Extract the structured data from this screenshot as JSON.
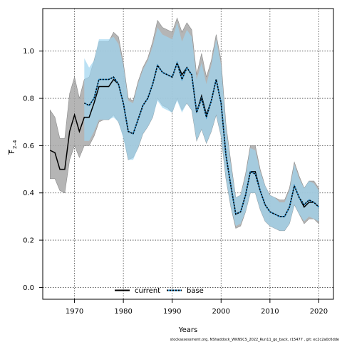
{
  "chart_data": {
    "type": "line",
    "xlabel": "Years",
    "ylabel_main": "F",
    "ylabel_sub": "2–4",
    "xlim": [
      1963.5,
      2023
    ],
    "ylim": [
      -0.05,
      1.18
    ],
    "x_ticks": [
      1970,
      1980,
      1990,
      2000,
      2010,
      2020
    ],
    "y_ticks": [
      0.0,
      0.2,
      0.4,
      0.6,
      0.8,
      1.0
    ],
    "x_tick_labels": [
      "1970",
      "1980",
      "1990",
      "2000",
      "2010",
      "2020"
    ],
    "y_tick_labels": [
      "0.0",
      "0.2",
      "0.4",
      "0.6",
      "0.8",
      "1.0"
    ],
    "grid": true,
    "legend_position": "bottom-center",
    "legend": {
      "current_label": "current",
      "base_label": "base"
    },
    "footer": "stockassessment.org, NShaddock_WKNSCS_2022_Run11_go_back, r15477 , git: ec2c2a0c6dde",
    "colors": {
      "current_band": "#a8a8a8",
      "current_band_edge": "#8a8a8a",
      "current_line": "#000000",
      "base_band": "#9ed4f0",
      "base_line": "#000000",
      "base_line_dash": "#2a8fd0"
    },
    "series": [
      {
        "name": "current",
        "x": [
          1965,
          1966,
          1967,
          1968,
          1969,
          1970,
          1971,
          1972,
          1973,
          1974,
          1975,
          1976,
          1977,
          1978,
          1979,
          1980,
          1981,
          1982,
          1983,
          1984,
          1985,
          1986,
          1987,
          1988,
          1989,
          1990,
          1991,
          1992,
          1993,
          1994,
          1995,
          1996,
          1997,
          1998,
          1999,
          2000,
          2001,
          2002,
          2003,
          2004,
          2005,
          2006,
          2007,
          2008,
          2009,
          2010,
          2011,
          2012,
          2013,
          2014,
          2015,
          2016,
          2017,
          2018,
          2019,
          2020
        ],
        "y": [
          0.58,
          0.57,
          0.5,
          0.5,
          0.66,
          0.73,
          0.66,
          0.72,
          0.72,
          0.78,
          0.85,
          0.85,
          0.85,
          0.88,
          0.86,
          0.78,
          0.66,
          0.65,
          0.71,
          0.77,
          0.8,
          0.86,
          0.94,
          0.91,
          0.9,
          0.89,
          0.95,
          0.9,
          0.93,
          0.9,
          0.74,
          0.81,
          0.73,
          0.79,
          0.88,
          0.78,
          0.56,
          0.43,
          0.31,
          0.32,
          0.39,
          0.49,
          0.49,
          0.41,
          0.35,
          0.32,
          0.31,
          0.3,
          0.3,
          0.34,
          0.43,
          0.38,
          0.34,
          0.36,
          0.36,
          0.34
        ],
        "lower": [
          0.46,
          0.46,
          0.41,
          0.4,
          0.54,
          0.6,
          0.55,
          0.6,
          0.6,
          0.64,
          0.7,
          0.71,
          0.71,
          0.73,
          0.7,
          0.64,
          0.54,
          0.55,
          0.59,
          0.65,
          0.68,
          0.72,
          0.8,
          0.77,
          0.76,
          0.74,
          0.8,
          0.75,
          0.78,
          0.75,
          0.62,
          0.67,
          0.61,
          0.66,
          0.73,
          0.64,
          0.46,
          0.34,
          0.25,
          0.26,
          0.32,
          0.4,
          0.4,
          0.33,
          0.28,
          0.26,
          0.25,
          0.24,
          0.24,
          0.27,
          0.35,
          0.31,
          0.27,
          0.29,
          0.29,
          0.27
        ],
        "upper": [
          0.75,
          0.72,
          0.63,
          0.63,
          0.82,
          0.89,
          0.8,
          0.88,
          0.89,
          0.96,
          1.04,
          1.04,
          1.04,
          1.08,
          1.06,
          0.95,
          0.8,
          0.79,
          0.87,
          0.93,
          0.97,
          1.04,
          1.13,
          1.1,
          1.09,
          1.08,
          1.14,
          1.08,
          1.12,
          1.09,
          0.9,
          0.99,
          0.89,
          0.96,
          1.07,
          0.96,
          0.69,
          0.53,
          0.38,
          0.39,
          0.48,
          0.6,
          0.6,
          0.5,
          0.43,
          0.39,
          0.38,
          0.37,
          0.37,
          0.42,
          0.53,
          0.47,
          0.42,
          0.45,
          0.45,
          0.42
        ]
      },
      {
        "name": "base",
        "x": [
          1972,
          1973,
          1974,
          1975,
          1976,
          1977,
          1978,
          1979,
          1980,
          1981,
          1982,
          1983,
          1984,
          1985,
          1986,
          1987,
          1988,
          1989,
          1990,
          1991,
          1992,
          1993,
          1994,
          1995,
          1996,
          1997,
          1998,
          1999,
          2000,
          2001,
          2002,
          2003,
          2004,
          2005,
          2006,
          2007,
          2008,
          2009,
          2010,
          2011,
          2012,
          2013,
          2014,
          2015,
          2016,
          2017,
          2018,
          2019,
          2020
        ],
        "y": [
          0.78,
          0.77,
          0.8,
          0.88,
          0.88,
          0.88,
          0.89,
          0.86,
          0.78,
          0.66,
          0.65,
          0.71,
          0.77,
          0.8,
          0.86,
          0.94,
          0.91,
          0.9,
          0.89,
          0.95,
          0.88,
          0.93,
          0.9,
          0.74,
          0.8,
          0.72,
          0.79,
          0.88,
          0.78,
          0.56,
          0.43,
          0.31,
          0.32,
          0.39,
          0.49,
          0.48,
          0.41,
          0.35,
          0.32,
          0.31,
          0.3,
          0.3,
          0.34,
          0.43,
          0.38,
          0.35,
          0.37,
          0.36,
          0.34
        ],
        "lower": [
          0.62,
          0.62,
          0.66,
          0.71,
          0.71,
          0.71,
          0.72,
          0.7,
          0.63,
          0.54,
          0.54,
          0.59,
          0.65,
          0.68,
          0.72,
          0.79,
          0.76,
          0.75,
          0.74,
          0.79,
          0.74,
          0.78,
          0.75,
          0.62,
          0.67,
          0.61,
          0.66,
          0.73,
          0.64,
          0.46,
          0.34,
          0.26,
          0.27,
          0.32,
          0.4,
          0.4,
          0.33,
          0.28,
          0.26,
          0.25,
          0.24,
          0.24,
          0.27,
          0.35,
          0.31,
          0.28,
          0.3,
          0.29,
          0.28
        ],
        "upper": [
          0.97,
          0.93,
          0.96,
          1.05,
          1.05,
          1.05,
          1.06,
          1.03,
          0.94,
          0.79,
          0.78,
          0.86,
          0.92,
          0.96,
          1.02,
          1.1,
          1.07,
          1.06,
          1.05,
          1.12,
          1.04,
          1.09,
          1.06,
          0.88,
          0.95,
          0.86,
          0.94,
          1.05,
          0.94,
          0.68,
          0.52,
          0.38,
          0.39,
          0.47,
          0.59,
          0.58,
          0.49,
          0.43,
          0.39,
          0.38,
          0.36,
          0.36,
          0.41,
          0.52,
          0.46,
          0.42,
          0.45,
          0.44,
          0.41
        ]
      }
    ]
  }
}
